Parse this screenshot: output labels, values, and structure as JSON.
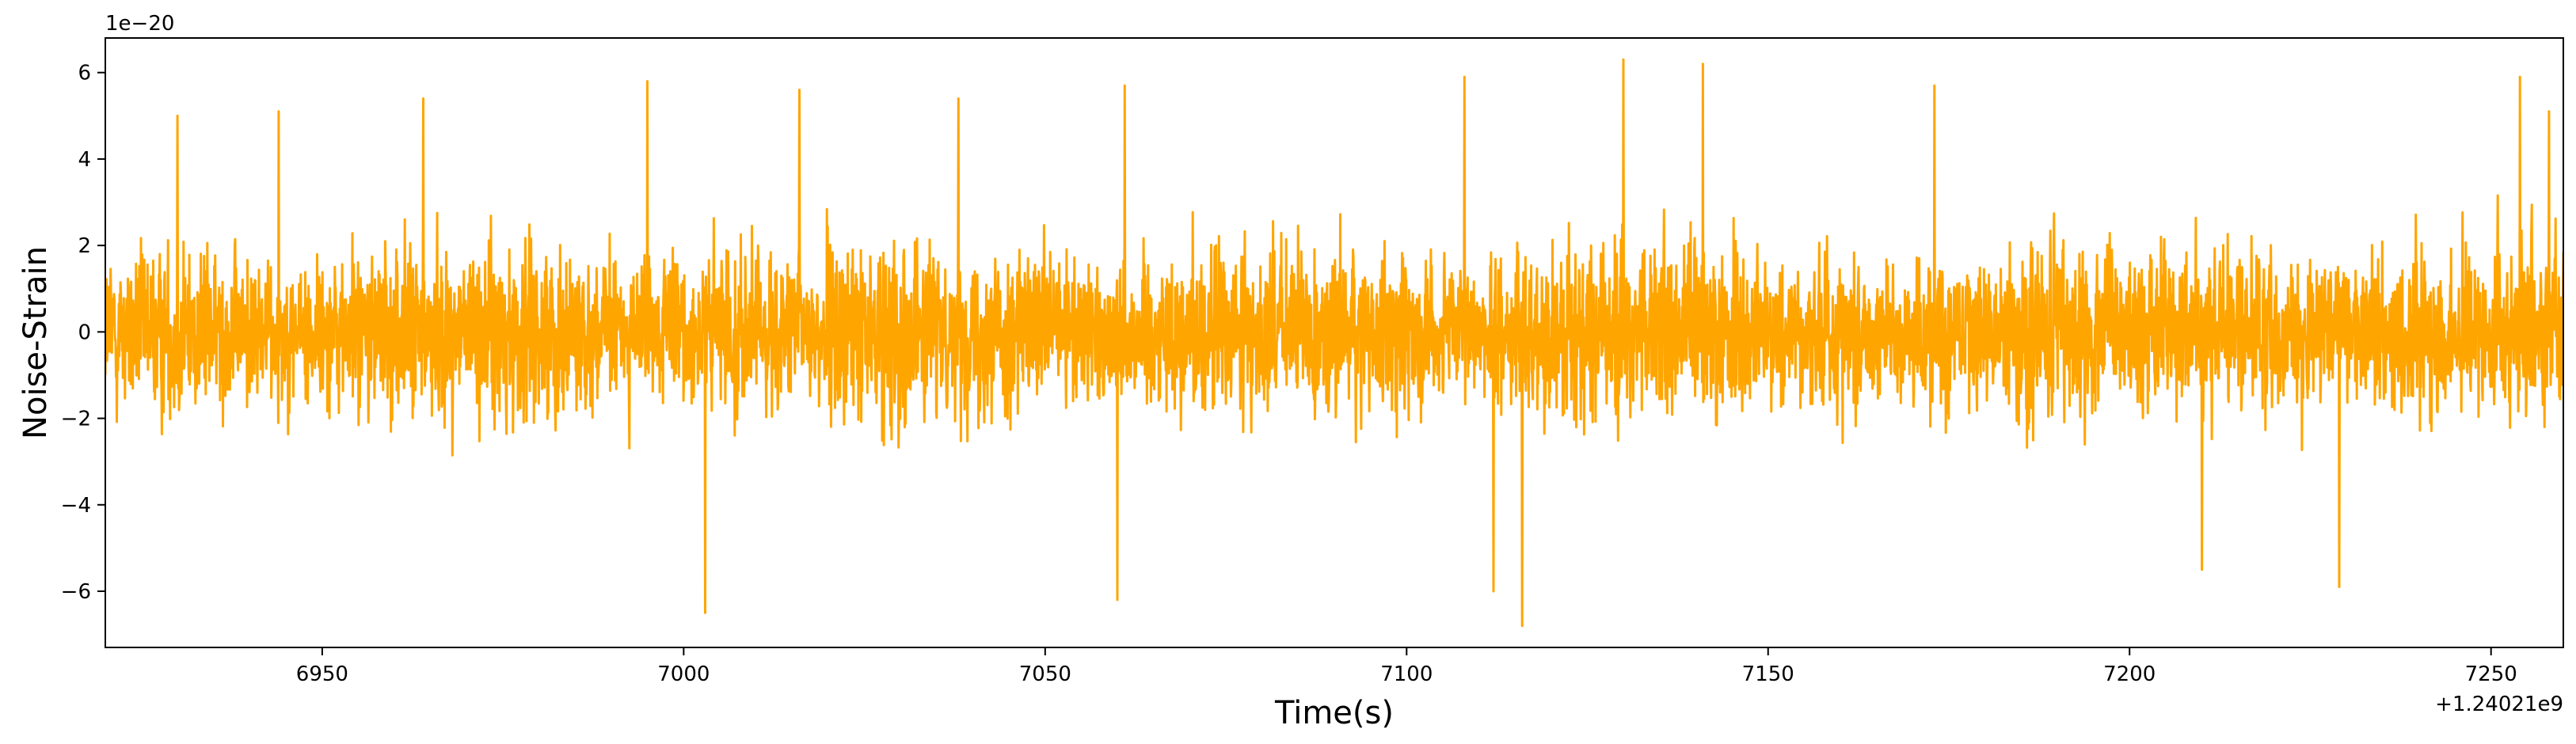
{
  "chart_data": {
    "type": "line",
    "title": "",
    "xlabel": "Time(s)",
    "ylabel": "Noise-Strain",
    "x_offset_label": "+1.24021e9",
    "y_scale_label": "1e−20",
    "xlim": [
      6920,
      7260
    ],
    "ylim": [
      -7.3,
      6.8
    ],
    "x_ticks": [
      6950,
      7000,
      7050,
      7100,
      7150,
      7200,
      7250
    ],
    "x_tick_labels": [
      "6950",
      "7000",
      "7050",
      "7100",
      "7150",
      "7200",
      "7250"
    ],
    "y_ticks": [
      -6,
      -4,
      -2,
      0,
      2,
      4,
      6
    ],
    "y_tick_labels": [
      "−6",
      "−4",
      "−2",
      "0",
      "2",
      "4",
      "6"
    ],
    "grid": false,
    "legend": "none",
    "series": [
      {
        "color": "#FFA500",
        "description_x_range": [
          6920,
          7260
        ],
        "peaks": [
          {
            "x": 6930,
            "y": 5.0
          },
          {
            "x": 6944,
            "y": 5.1
          },
          {
            "x": 6964,
            "y": 5.4
          },
          {
            "x": 6995,
            "y": 5.8
          },
          {
            "x": 7003,
            "y": -6.5
          },
          {
            "x": 7016,
            "y": 5.6
          },
          {
            "x": 7038,
            "y": 5.4
          },
          {
            "x": 7060,
            "y": -6.2
          },
          {
            "x": 7061,
            "y": 5.7
          },
          {
            "x": 7108,
            "y": 5.9
          },
          {
            "x": 7112,
            "y": -6.0
          },
          {
            "x": 7116,
            "y": -6.8
          },
          {
            "x": 7130,
            "y": 6.3
          },
          {
            "x": 7141,
            "y": 6.2
          },
          {
            "x": 7173,
            "y": 5.7
          },
          {
            "x": 7210,
            "y": -5.5
          },
          {
            "x": 7229,
            "y": -5.9
          },
          {
            "x": 7254,
            "y": 5.9
          },
          {
            "x": 7258,
            "y": 5.1
          }
        ],
        "typical_envelope": [
          -4.0,
          4.0
        ]
      }
    ]
  }
}
